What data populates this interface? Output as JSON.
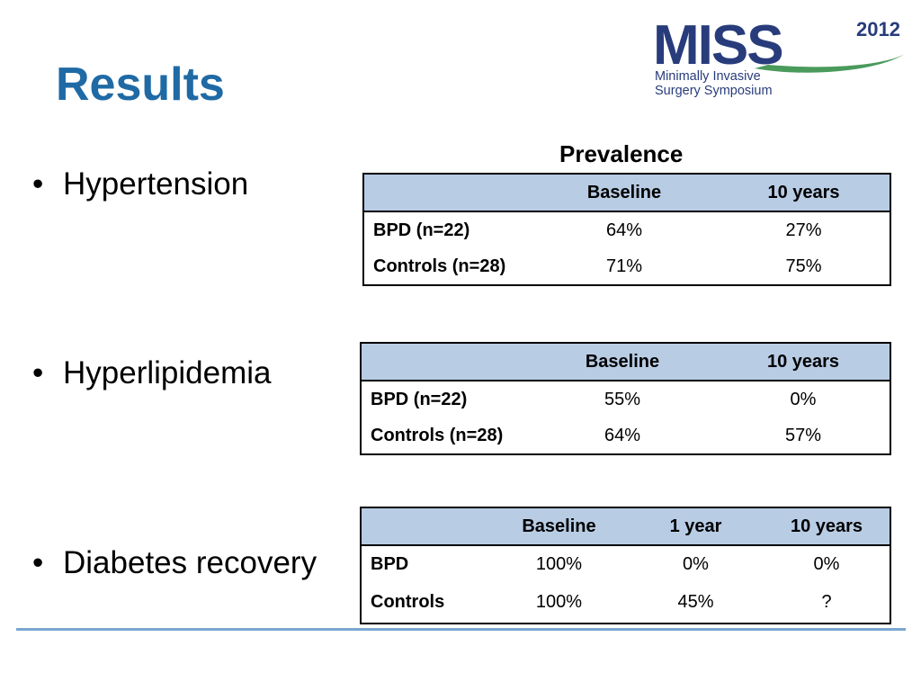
{
  "slide": {
    "title": "Results",
    "logo": {
      "main": "MISS",
      "year": "2012",
      "line1": "Minimally Invasive",
      "line2": "Surgery Symposium",
      "color": "#283c7c",
      "accent": "#4a9a5c"
    },
    "bullets": [
      "Hypertension",
      "Hyperlipidemia",
      "Diabetes recovery"
    ],
    "bullet_glyph": "•",
    "prevalence_heading": "Prevalence"
  },
  "tables": {
    "hypertension": {
      "headers": [
        "",
        "Baseline",
        "10 years"
      ],
      "rows": [
        {
          "label": "BPD (n=22)",
          "values": [
            "64%",
            "27%"
          ]
        },
        {
          "label": "Controls (n=28)",
          "values": [
            "71%",
            "75%"
          ]
        }
      ]
    },
    "hyperlipidemia": {
      "headers": [
        "",
        "Baseline",
        "10 years"
      ],
      "rows": [
        {
          "label": "BPD (n=22)",
          "values": [
            "55%",
            "0%"
          ]
        },
        {
          "label": "Controls (n=28)",
          "values": [
            "64%",
            "57%"
          ]
        }
      ]
    },
    "diabetes": {
      "headers": [
        "",
        "Baseline",
        "1 year",
        "10 years"
      ],
      "rows": [
        {
          "label": "BPD",
          "values": [
            "100%",
            "0%",
            "0%"
          ]
        },
        {
          "label": "Controls",
          "values": [
            "100%",
            "45%",
            "?"
          ]
        }
      ]
    }
  },
  "colors": {
    "title": "#1f6aa5",
    "table_header_bg": "#b8cce4",
    "rule": "#7aa6d2"
  }
}
